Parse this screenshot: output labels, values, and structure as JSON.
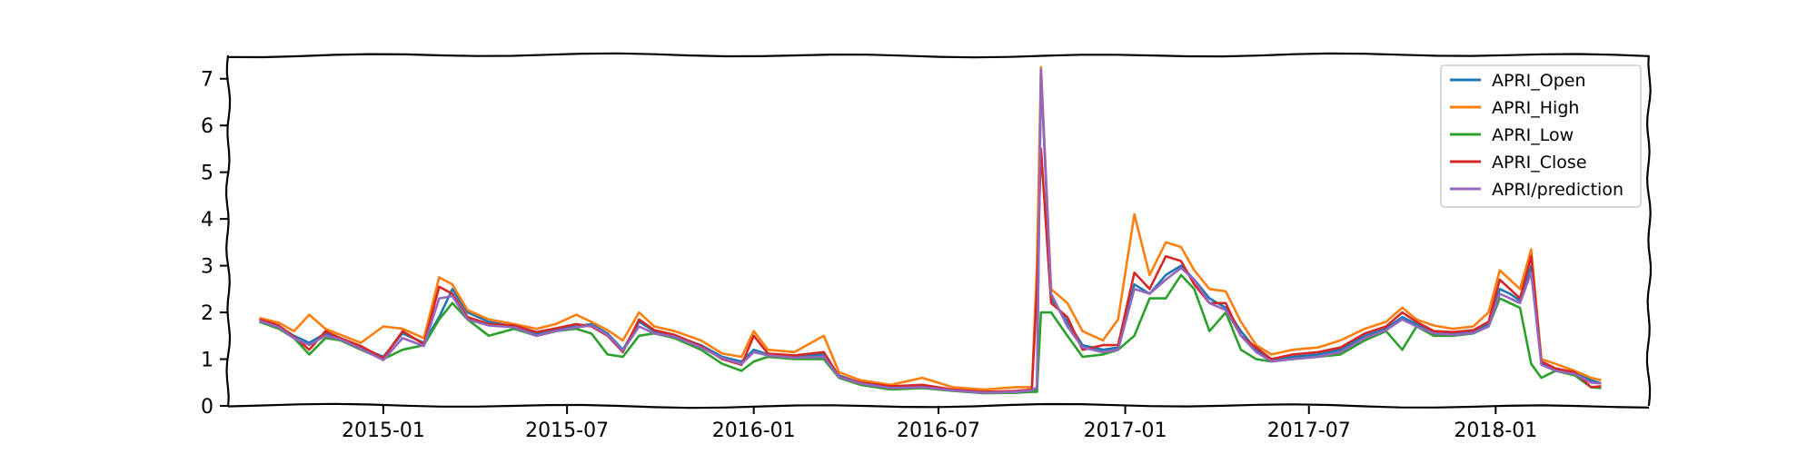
{
  "chart_data": {
    "type": "line",
    "title": "",
    "xlabel": "",
    "ylabel": "",
    "xlim": [
      "2014-08-01",
      "2018-06-01"
    ],
    "ylim": [
      0,
      7.5
    ],
    "x_ticks": [
      "2015-01",
      "2015-07",
      "2016-01",
      "2016-07",
      "2017-01",
      "2017-07",
      "2018-01"
    ],
    "y_ticks": [
      0,
      1,
      2,
      3,
      4,
      5,
      6,
      7
    ],
    "legend_position": "top-right",
    "x": [
      "2014-09-01",
      "2014-09-20",
      "2014-10-05",
      "2014-10-20",
      "2014-11-05",
      "2014-11-20",
      "2014-12-10",
      "2015-01-01",
      "2015-01-20",
      "2015-02-10",
      "2015-02-25",
      "2015-03-10",
      "2015-03-25",
      "2015-04-15",
      "2015-05-10",
      "2015-06-01",
      "2015-06-20",
      "2015-07-10",
      "2015-07-25",
      "2015-08-10",
      "2015-08-25",
      "2015-09-10",
      "2015-09-25",
      "2015-10-15",
      "2015-11-10",
      "2015-12-01",
      "2015-12-20",
      "2016-01-01",
      "2016-01-15",
      "2016-02-10",
      "2016-03-10",
      "2016-03-25",
      "2016-04-15",
      "2016-05-15",
      "2016-06-15",
      "2016-07-15",
      "2016-08-15",
      "2016-09-15",
      "2016-10-01",
      "2016-10-06",
      "2016-10-10",
      "2016-10-20",
      "2016-11-05",
      "2016-11-20",
      "2016-12-10",
      "2016-12-25",
      "2017-01-10",
      "2017-01-25",
      "2017-02-10",
      "2017-02-25",
      "2017-03-10",
      "2017-03-25",
      "2017-04-10",
      "2017-04-25",
      "2017-05-10",
      "2017-05-25",
      "2017-06-15",
      "2017-07-10",
      "2017-08-01",
      "2017-08-25",
      "2017-09-15",
      "2017-10-01",
      "2017-10-15",
      "2017-11-01",
      "2017-11-20",
      "2017-12-10",
      "2017-12-25",
      "2018-01-05",
      "2018-01-15",
      "2018-01-25",
      "2018-02-05",
      "2018-02-15",
      "2018-03-01",
      "2018-03-20",
      "2018-04-05",
      "2018-04-15"
    ],
    "series": [
      {
        "name": "APRI_Open",
        "color": "#1f77b4",
        "values": [
          1.83,
          1.7,
          1.5,
          1.35,
          1.55,
          1.45,
          1.25,
          1.05,
          1.55,
          1.35,
          1.9,
          2.5,
          2.0,
          1.8,
          1.7,
          1.55,
          1.65,
          1.7,
          1.75,
          1.55,
          1.2,
          1.8,
          1.6,
          1.5,
          1.3,
          1.05,
          0.95,
          1.2,
          1.1,
          1.05,
          1.1,
          0.65,
          0.5,
          0.4,
          0.42,
          0.35,
          0.3,
          0.3,
          0.35,
          0.33,
          7.15,
          2.3,
          1.8,
          1.3,
          1.2,
          1.25,
          2.6,
          2.4,
          2.8,
          3.0,
          2.7,
          2.3,
          2.1,
          1.6,
          1.2,
          1.0,
          1.05,
          1.1,
          1.2,
          1.5,
          1.65,
          1.9,
          1.75,
          1.6,
          1.55,
          1.6,
          1.75,
          2.5,
          2.4,
          2.25,
          3.0,
          0.9,
          0.8,
          0.7,
          0.55,
          0.48
        ]
      },
      {
        "name": "APRI_High",
        "color": "#ff7f0e",
        "values": [
          1.88,
          1.78,
          1.6,
          1.95,
          1.65,
          1.52,
          1.35,
          1.7,
          1.65,
          1.45,
          2.75,
          2.6,
          2.05,
          1.85,
          1.75,
          1.65,
          1.75,
          1.95,
          1.8,
          1.62,
          1.4,
          2.0,
          1.7,
          1.6,
          1.4,
          1.12,
          1.05,
          1.6,
          1.2,
          1.15,
          1.5,
          0.72,
          0.55,
          0.45,
          0.6,
          0.4,
          0.35,
          0.4,
          0.4,
          3.0,
          7.25,
          2.5,
          2.2,
          1.6,
          1.4,
          1.85,
          4.1,
          2.8,
          3.5,
          3.4,
          2.9,
          2.5,
          2.45,
          1.8,
          1.3,
          1.1,
          1.2,
          1.25,
          1.4,
          1.65,
          1.8,
          2.1,
          1.85,
          1.72,
          1.65,
          1.7,
          2.0,
          2.9,
          2.7,
          2.5,
          3.35,
          1.0,
          0.9,
          0.75,
          0.6,
          0.55
        ]
      },
      {
        "name": "APRI_Low",
        "color": "#2ca02c",
        "values": [
          1.8,
          1.65,
          1.45,
          1.1,
          1.45,
          1.4,
          1.2,
          1.0,
          1.2,
          1.3,
          1.85,
          2.2,
          1.85,
          1.5,
          1.65,
          1.5,
          1.6,
          1.65,
          1.55,
          1.1,
          1.05,
          1.5,
          1.55,
          1.45,
          1.2,
          0.9,
          0.75,
          0.95,
          1.05,
          1.0,
          1.0,
          0.6,
          0.45,
          0.35,
          0.38,
          0.32,
          0.27,
          0.28,
          0.3,
          0.3,
          2.0,
          2.0,
          1.5,
          1.05,
          1.1,
          1.2,
          1.5,
          2.3,
          2.3,
          2.8,
          2.5,
          1.6,
          2.0,
          1.2,
          1.0,
          0.95,
          1.0,
          1.05,
          1.1,
          1.4,
          1.6,
          1.2,
          1.7,
          1.5,
          1.5,
          1.55,
          1.7,
          2.3,
          2.2,
          2.1,
          0.9,
          0.6,
          0.75,
          0.65,
          0.4,
          0.38
        ]
      },
      {
        "name": "APRI_Close",
        "color": "#d62728",
        "values": [
          1.85,
          1.72,
          1.48,
          1.2,
          1.6,
          1.45,
          1.28,
          1.02,
          1.6,
          1.32,
          2.55,
          2.4,
          1.9,
          1.75,
          1.72,
          1.58,
          1.66,
          1.75,
          1.7,
          1.5,
          1.15,
          1.85,
          1.62,
          1.52,
          1.28,
          1.0,
          0.88,
          1.5,
          1.12,
          1.08,
          1.15,
          0.63,
          0.5,
          0.42,
          0.45,
          0.35,
          0.3,
          0.32,
          0.35,
          2.5,
          5.5,
          2.2,
          1.9,
          1.2,
          1.3,
          1.3,
          2.85,
          2.5,
          3.2,
          3.1,
          2.6,
          2.2,
          2.2,
          1.5,
          1.25,
          1.0,
          1.1,
          1.15,
          1.25,
          1.55,
          1.7,
          2.0,
          1.8,
          1.6,
          1.58,
          1.62,
          1.8,
          2.7,
          2.5,
          2.3,
          3.2,
          0.95,
          0.8,
          0.72,
          0.4,
          0.42
        ]
      },
      {
        "name": "APRI/prediction",
        "color": "#9467bd",
        "values": [
          1.82,
          1.68,
          1.45,
          1.3,
          1.5,
          1.42,
          1.22,
          0.98,
          1.45,
          1.28,
          2.3,
          2.35,
          1.85,
          1.72,
          1.68,
          1.5,
          1.6,
          1.68,
          1.72,
          1.52,
          1.18,
          1.7,
          1.55,
          1.48,
          1.25,
          1.02,
          0.9,
          1.15,
          1.08,
          1.03,
          1.05,
          0.62,
          0.48,
          0.38,
          0.4,
          0.33,
          0.28,
          0.3,
          0.33,
          0.4,
          7.2,
          2.4,
          1.7,
          1.25,
          1.15,
          1.2,
          2.5,
          2.4,
          2.7,
          2.95,
          2.7,
          2.2,
          2.05,
          1.5,
          1.15,
          0.95,
          1.0,
          1.05,
          1.15,
          1.45,
          1.62,
          1.85,
          1.7,
          1.55,
          1.52,
          1.56,
          1.7,
          2.4,
          2.3,
          2.2,
          2.85,
          0.88,
          0.75,
          0.68,
          0.5,
          0.48
        ]
      }
    ]
  }
}
